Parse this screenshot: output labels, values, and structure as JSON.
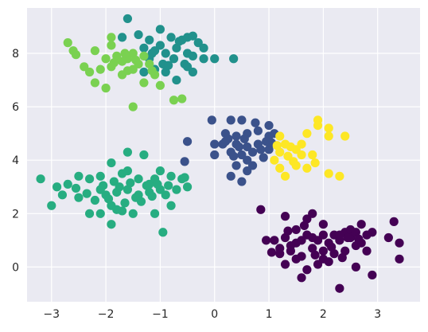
{
  "chart_data": {
    "type": "scatter",
    "title": "",
    "xlabel": "",
    "ylabel": "",
    "xlim": [
      -3.45,
      3.78
    ],
    "ylim": [
      -1.3,
      9.7
    ],
    "xticks": [
      -3,
      -2,
      -1,
      0,
      1,
      2,
      3
    ],
    "yticks": [
      0,
      2,
      4,
      6,
      8
    ],
    "grid": true,
    "legend": "none",
    "background": "#eaeaf2",
    "grid_color": "#ffffff",
    "series": [
      {
        "color": "#440154",
        "points": [
          [
            1.3,
            1.9
          ],
          [
            1.5,
            1.4
          ],
          [
            1.7,
            1.8
          ],
          [
            1.8,
            2.0
          ],
          [
            2.0,
            1.6
          ],
          [
            2.2,
            1.2
          ],
          [
            2.4,
            1.3
          ],
          [
            2.5,
            1.4
          ],
          [
            2.7,
            1.6
          ],
          [
            2.9,
            1.3
          ],
          [
            3.3,
            1.7
          ],
          [
            3.4,
            0.9
          ],
          [
            3.2,
            1.1
          ],
          [
            2.6,
            0.8
          ],
          [
            2.4,
            0.6
          ],
          [
            2.2,
            0.5
          ],
          [
            2.0,
            0.3
          ],
          [
            1.8,
            0.7
          ],
          [
            1.6,
            0.4
          ],
          [
            1.4,
            0.6
          ],
          [
            1.2,
            0.5
          ],
          [
            1.1,
            1.0
          ],
          [
            1.3,
            1.1
          ],
          [
            1.5,
            0.9
          ],
          [
            1.7,
            1.2
          ],
          [
            1.9,
            1.0
          ],
          [
            2.1,
            0.9
          ],
          [
            2.3,
            1.0
          ],
          [
            2.5,
            1.1
          ],
          [
            2.7,
            0.9
          ],
          [
            2.8,
            1.2
          ],
          [
            2.6,
            1.3
          ],
          [
            2.3,
            1.2
          ],
          [
            2.0,
            1.2
          ],
          [
            1.8,
            1.1
          ],
          [
            1.6,
            1.0
          ],
          [
            1.4,
            0.8
          ],
          [
            1.2,
            0.7
          ],
          [
            1.5,
            0.3
          ],
          [
            1.7,
            -0.1
          ],
          [
            1.9,
            0.1
          ],
          [
            2.1,
            0.2
          ],
          [
            2.3,
            -0.8
          ],
          [
            1.6,
            -0.4
          ],
          [
            1.3,
            0.1
          ],
          [
            2.6,
            0.0
          ],
          [
            2.9,
            -0.3
          ],
          [
            3.4,
            0.3
          ],
          [
            2.8,
            0.6
          ],
          [
            2.0,
            0.6
          ],
          [
            0.85,
            2.15
          ],
          [
            0.95,
            1.0
          ],
          [
            2.45,
            1.1
          ],
          [
            1.85,
            0.45
          ],
          [
            2.15,
            0.75
          ],
          [
            1.35,
            1.35
          ],
          [
            1.65,
            1.55
          ],
          [
            2.65,
            1.05
          ],
          [
            1.05,
            0.55
          ],
          [
            2.35,
            0.35
          ]
        ]
      },
      {
        "color": "#3b528b",
        "points": [
          [
            -0.05,
            5.5
          ],
          [
            0.3,
            5.5
          ],
          [
            0.5,
            5.5
          ],
          [
            0.75,
            5.4
          ],
          [
            1.0,
            5.3
          ],
          [
            0.2,
            5.0
          ],
          [
            0.4,
            4.9
          ],
          [
            0.6,
            5.0
          ],
          [
            0.8,
            5.1
          ],
          [
            1.0,
            4.9
          ],
          [
            0.0,
            4.6
          ],
          [
            0.2,
            4.7
          ],
          [
            0.4,
            4.6
          ],
          [
            0.6,
            4.5
          ],
          [
            0.8,
            4.6
          ],
          [
            1.0,
            4.4
          ],
          [
            0.3,
            4.3
          ],
          [
            0.5,
            4.2
          ],
          [
            0.7,
            4.3
          ],
          [
            0.9,
            4.1
          ],
          [
            0.6,
            4.0
          ],
          [
            0.4,
            3.8
          ],
          [
            0.6,
            3.6
          ],
          [
            0.5,
            3.2
          ],
          [
            0.3,
            3.4
          ],
          [
            0.0,
            4.2
          ],
          [
            -0.5,
            4.7
          ],
          [
            -0.55,
            3.95
          ],
          [
            1.1,
            5.0
          ],
          [
            0.15,
            4.6
          ],
          [
            0.45,
            4.5
          ],
          [
            0.7,
            3.8
          ],
          [
            0.85,
            4.4
          ],
          [
            0.25,
            4.8
          ],
          [
            0.95,
            4.7
          ],
          [
            0.55,
            4.8
          ],
          [
            1.05,
            4.65
          ],
          [
            0.35,
            4.15
          ]
        ]
      },
      {
        "color": "#21918c",
        "points": [
          [
            -1.6,
            9.3
          ],
          [
            -1.7,
            8.6
          ],
          [
            -1.4,
            8.7
          ],
          [
            -1.2,
            8.5
          ],
          [
            -1.0,
            8.9
          ],
          [
            -0.8,
            8.6
          ],
          [
            -0.6,
            8.5
          ],
          [
            -0.5,
            8.6
          ],
          [
            -0.3,
            8.4
          ],
          [
            -0.2,
            8.2
          ],
          [
            -1.3,
            8.2
          ],
          [
            -1.1,
            8.1
          ],
          [
            -0.9,
            8.0
          ],
          [
            -0.7,
            8.2
          ],
          [
            -0.5,
            8.0
          ],
          [
            -0.4,
            7.9
          ],
          [
            -0.2,
            7.8
          ],
          [
            -0.55,
            7.6
          ],
          [
            -0.4,
            7.3
          ],
          [
            -0.5,
            7.5
          ],
          [
            -0.95,
            7.6
          ],
          [
            -1.1,
            7.4
          ],
          [
            -1.3,
            7.3
          ],
          [
            -1.2,
            7.8
          ],
          [
            -0.9,
            7.3
          ],
          [
            -0.7,
            7.0
          ],
          [
            0.0,
            7.8
          ],
          [
            0.35,
            7.8
          ],
          [
            -0.4,
            8.65
          ],
          [
            -1.0,
            8.3
          ],
          [
            -0.75,
            7.8
          ],
          [
            -1.15,
            8.0
          ],
          [
            -0.85,
            7.55
          ],
          [
            -0.65,
            8.45
          ]
        ]
      },
      {
        "color": "#27ad81",
        "points": [
          [
            -3.2,
            3.3
          ],
          [
            -2.9,
            3.0
          ],
          [
            -2.7,
            3.1
          ],
          [
            -2.5,
            3.4
          ],
          [
            -2.3,
            3.3
          ],
          [
            -2.1,
            3.4
          ],
          [
            -1.9,
            3.9
          ],
          [
            -1.7,
            3.5
          ],
          [
            -1.6,
            3.6
          ],
          [
            -1.4,
            3.3
          ],
          [
            -1.2,
            3.1
          ],
          [
            -1.1,
            3.3
          ],
          [
            -1.0,
            3.6
          ],
          [
            -0.8,
            3.4
          ],
          [
            -0.6,
            3.3
          ],
          [
            -0.5,
            3.0
          ],
          [
            -2.8,
            2.7
          ],
          [
            -2.5,
            2.6
          ],
          [
            -2.2,
            2.5
          ],
          [
            -2.0,
            2.7
          ],
          [
            -1.8,
            2.8
          ],
          [
            -1.6,
            2.9
          ],
          [
            -1.4,
            2.7
          ],
          [
            -1.2,
            2.8
          ],
          [
            -1.0,
            2.9
          ],
          [
            -0.9,
            2.7
          ],
          [
            -0.7,
            2.9
          ],
          [
            -0.8,
            2.3
          ],
          [
            -1.1,
            2.0
          ],
          [
            -1.5,
            2.0
          ],
          [
            -1.7,
            2.1
          ],
          [
            -1.9,
            2.3
          ],
          [
            -2.1,
            2.0
          ],
          [
            -2.3,
            2.0
          ],
          [
            -1.9,
            1.6
          ],
          [
            -3.0,
            2.3
          ],
          [
            -1.6,
            4.3
          ],
          [
            -1.3,
            4.2
          ],
          [
            -2.1,
            2.9
          ],
          [
            -1.85,
            3.2
          ],
          [
            -1.65,
            2.4
          ],
          [
            -1.45,
            2.6
          ],
          [
            -1.25,
            3.05
          ],
          [
            -1.05,
            3.1
          ],
          [
            -2.35,
            2.75
          ],
          [
            -2.05,
            3.05
          ],
          [
            -1.95,
            2.55
          ],
          [
            -1.75,
            3.0
          ],
          [
            -1.55,
            3.15
          ],
          [
            -1.35,
            2.45
          ],
          [
            -1.15,
            2.65
          ],
          [
            -0.95,
            1.3
          ],
          [
            -2.55,
            2.95
          ],
          [
            -1.8,
            2.15
          ],
          [
            -0.85,
            3.05
          ],
          [
            -0.55,
            3.35
          ]
        ]
      },
      {
        "color": "#7ad151",
        "points": [
          [
            -2.7,
            8.4
          ],
          [
            -2.6,
            8.1
          ],
          [
            -2.4,
            7.5
          ],
          [
            -2.3,
            7.3
          ],
          [
            -2.1,
            7.4
          ],
          [
            -2.0,
            7.8
          ],
          [
            -1.9,
            8.6
          ],
          [
            -1.9,
            8.3
          ],
          [
            -1.8,
            7.9
          ],
          [
            -1.7,
            7.7
          ],
          [
            -1.6,
            7.8
          ],
          [
            -1.5,
            8.0
          ],
          [
            -1.4,
            7.6
          ],
          [
            -1.3,
            7.9
          ],
          [
            -1.2,
            7.6
          ],
          [
            -1.5,
            7.4
          ],
          [
            -1.7,
            7.2
          ],
          [
            -1.9,
            7.5
          ],
          [
            -2.2,
            6.9
          ],
          [
            -2.0,
            6.7
          ],
          [
            -1.1,
            7.2
          ],
          [
            -1.0,
            6.8
          ],
          [
            -1.3,
            6.9
          ],
          [
            -1.5,
            6.0
          ],
          [
            -0.75,
            6.25
          ],
          [
            -0.6,
            6.3
          ],
          [
            -1.6,
            7.35
          ],
          [
            -1.85,
            7.65
          ],
          [
            -1.45,
            7.75
          ],
          [
            -1.65,
            8.0
          ],
          [
            -2.2,
            8.1
          ],
          [
            -1.15,
            7.35
          ],
          [
            -2.55,
            7.95
          ]
        ]
      },
      {
        "color": "#fde725",
        "points": [
          [
            1.9,
            5.5
          ],
          [
            1.9,
            5.3
          ],
          [
            2.1,
            5.2
          ],
          [
            2.4,
            4.9
          ],
          [
            2.1,
            4.9
          ],
          [
            1.7,
            5.0
          ],
          [
            1.2,
            4.9
          ],
          [
            1.4,
            4.5
          ],
          [
            1.6,
            4.2
          ],
          [
            1.8,
            4.2
          ],
          [
            1.2,
            4.3
          ],
          [
            1.3,
            4.6
          ],
          [
            1.5,
            4.4
          ],
          [
            1.1,
            4.0
          ],
          [
            1.2,
            3.7
          ],
          [
            1.3,
            3.4
          ],
          [
            1.5,
            3.8
          ],
          [
            1.7,
            3.7
          ],
          [
            2.1,
            3.5
          ],
          [
            2.3,
            3.4
          ],
          [
            1.35,
            4.15
          ],
          [
            1.45,
            3.95
          ],
          [
            1.15,
            4.55
          ],
          [
            1.85,
            3.9
          ],
          [
            1.6,
            4.6
          ]
        ]
      }
    ]
  }
}
